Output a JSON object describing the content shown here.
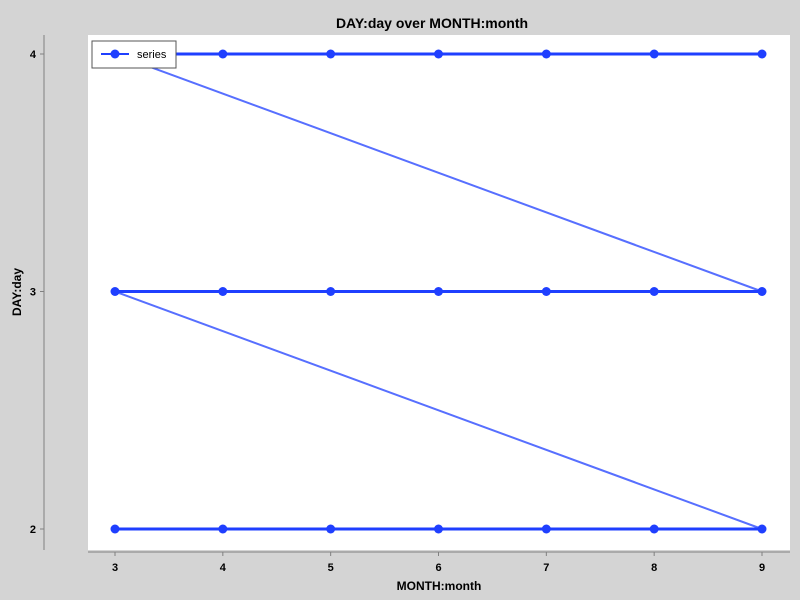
{
  "chart_data": {
    "type": "line",
    "title": "DAY:day over MONTH:month",
    "xlabel": "MONTH:month",
    "ylabel": "DAY:day",
    "xlim": [
      3,
      9
    ],
    "ylim": [
      2,
      4
    ],
    "x_ticks": [
      3,
      4,
      5,
      6,
      7,
      8,
      9
    ],
    "y_ticks": [
      2,
      3,
      4
    ],
    "grid": false,
    "legend_position": "top-left",
    "series": [
      {
        "name": "series",
        "color": "#1f3fff",
        "x": [
          3,
          4,
          5,
          6,
          7,
          8,
          9,
          3,
          4,
          5,
          6,
          7,
          8,
          9,
          3,
          4,
          5,
          6,
          7,
          8,
          9
        ],
        "y": [
          2,
          2,
          2,
          2,
          2,
          2,
          2,
          3,
          3,
          3,
          3,
          3,
          3,
          3,
          4,
          4,
          4,
          4,
          4,
          4,
          4
        ]
      }
    ]
  }
}
